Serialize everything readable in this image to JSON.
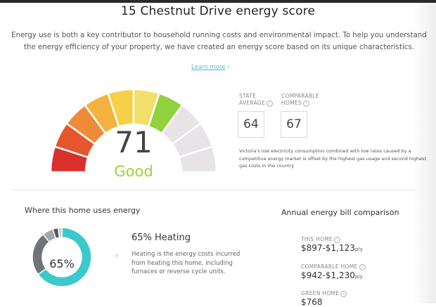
{
  "page": {
    "title": "15 Chestnut Drive energy score",
    "intro": "Energy use is both a key contributor to household running costs and environmental impact. To help you understand the energy efficiency of your property, we have created an energy score based on its unique characteristics.",
    "learn_more": "Learn more",
    "learn_more_chevron": "›"
  },
  "score": {
    "value": "71",
    "rating": "Good",
    "gauge_colors": [
      "#d9302c",
      "#e5552e",
      "#ef8a3a",
      "#f5b23e",
      "#f6d048",
      "#f2de6a",
      "#8fd23c",
      "#e8e3e6",
      "#e8e3e6",
      "#e8e3e6"
    ],
    "filled_segments": 7,
    "total_segments": 10
  },
  "stats": {
    "state_label_1": "STATE",
    "state_label_2": "AVERAGE",
    "state_value": "64",
    "comparable_label_1": "COMPARABLE",
    "comparable_label_2": "HOMES",
    "comparable_value": "67",
    "note": "Victoria's low electricity consumption combined with low rates caused by a competitive energy market is offset by the highest gas usage and second highest gas costs in the country."
  },
  "usage": {
    "heading": "Where this home uses energy",
    "percent": "65%",
    "title": "65% Heating",
    "description": "Heating is the energy costs incurred from heating this home, including furnaces or reverse cycle units.",
    "chevron": "›",
    "segments": [
      {
        "value": 65,
        "color": "#3cc9cc"
      },
      {
        "value": 24,
        "color": "#6f7478"
      },
      {
        "value": 6,
        "color": "#a3a8ab"
      },
      {
        "value": 3,
        "color": "#55595c"
      },
      {
        "value": 2,
        "color": "#c9cdd0"
      }
    ]
  },
  "bill": {
    "heading": "Annual energy bill comparison",
    "unit": "p/y",
    "rows": [
      {
        "label": "THIS HOME",
        "amount": "$897-$1,123"
      },
      {
        "label": "COMPARABLE HOME",
        "amount": "$942-$1,230"
      },
      {
        "label": "GREEN HOME",
        "amount": "$768"
      }
    ]
  }
}
